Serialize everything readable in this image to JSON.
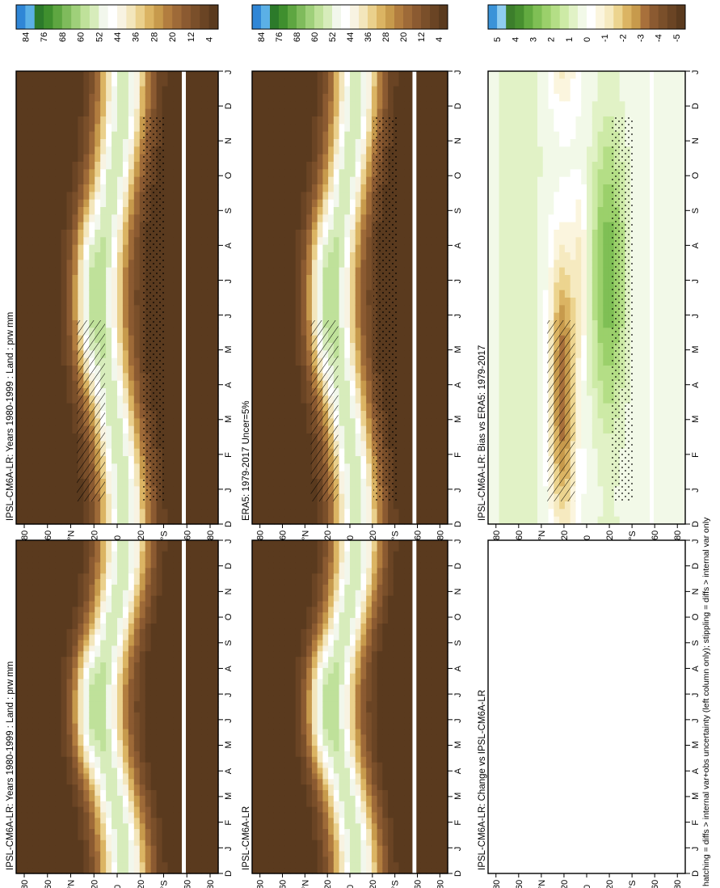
{
  "footer": "hatching = diffs > internal var+obs uncertainty (left column only); stippling = diffs > internal var only",
  "lat_labels": [
    "80",
    "60",
    "°N",
    "20",
    "0",
    "20",
    "°S",
    "60",
    "80"
  ],
  "month_labels": [
    "J",
    "F",
    "M",
    "A",
    "M",
    "J",
    "J",
    "A",
    "S",
    "O",
    "N",
    "D",
    "J"
  ],
  "month_labels_start": "D",
  "abs_scale": {
    "labels": [
      "84",
      "76",
      "68",
      "60",
      "52",
      "44",
      "36",
      "28",
      "20",
      "12",
      "4"
    ],
    "colors": [
      "#5a3a1e",
      "#6a4424",
      "#7a4f2a",
      "#8b5a31",
      "#9e6a38",
      "#b27d3f",
      "#c79a4c",
      "#dbb463",
      "#ead08c",
      "#f3e6bc",
      "#f8f3e2",
      "#ffffff",
      "#f2f7ec",
      "#d7ecbb",
      "#bfe19a",
      "#9fd07a",
      "#7fbb5c",
      "#5ea641",
      "#3f8f2e",
      "#2c7a2a",
      "#5bb0e6",
      "#2f86d6"
    ]
  },
  "diff_scale": {
    "labels": [
      "5",
      "4",
      "3",
      "2",
      "1",
      "0",
      "-1",
      "-2",
      "-3",
      "-4",
      "-5"
    ],
    "colors": [
      "#5a3a1e",
      "#6a4424",
      "#7a4f2a",
      "#8b5a31",
      "#a8703b",
      "#c79a4c",
      "#dbb463",
      "#ecd48f",
      "#f6eac0",
      "#fbf5de",
      "#ffffff",
      "#f2f9e8",
      "#e1f2c6",
      "#cdeaa6",
      "#b4de86",
      "#9bd06b",
      "#7fbf55",
      "#62aa40",
      "#478f2f",
      "#3c7e2b",
      "#8fcdf0",
      "#3a93d8"
    ]
  },
  "chart_data": [
    {
      "type": "heatmap",
      "title": "IPSL-CM6A-LR: Years 1980-1999 : Land : prw mm",
      "x": [
        "D",
        "J",
        "F",
        "M",
        "A",
        "M",
        "J",
        "J",
        "A",
        "S",
        "O",
        "N",
        "D",
        "J"
      ],
      "y": [
        "80",
        "60",
        "°N",
        "20",
        "0",
        "20",
        "°S",
        "60",
        "80"
      ],
      "units": "mm",
      "colorbar": [
        4,
        84
      ]
    },
    {
      "type": "heatmap",
      "title": "IPSL-CM6A-LR: Years 1980-1999 : Land : prw mm",
      "x": [
        "D",
        "J",
        "F",
        "M",
        "A",
        "M",
        "J",
        "J",
        "A",
        "S",
        "O",
        "N",
        "D",
        "J"
      ],
      "y": [
        "80",
        "60",
        "°N",
        "20",
        "0",
        "20",
        "°S",
        "60",
        "80"
      ],
      "units": "mm",
      "colorbar": [
        4,
        84
      ]
    },
    {
      "type": "heatmap",
      "title": "ERA5: 1979-2017 Uncer=5%",
      "x": [
        "D",
        "J",
        "F",
        "M",
        "A",
        "M",
        "J",
        "J",
        "A",
        "S",
        "O",
        "N",
        "D",
        "J"
      ],
      "y": [
        "80",
        "60",
        "°N",
        "20",
        "0",
        "20",
        "°S",
        "60",
        "80"
      ],
      "units": "mm",
      "colorbar": [
        4,
        84
      ]
    },
    {
      "type": "heatmap",
      "title": "IPSL-CM6A-LR",
      "x": [
        "D",
        "J",
        "F",
        "M",
        "A",
        "M",
        "J",
        "J",
        "A",
        "S",
        "O",
        "N",
        "D",
        "J"
      ],
      "y": [
        "80",
        "60",
        "°N",
        "20",
        "0",
        "20",
        "°S",
        "60",
        "80"
      ],
      "units": "mm",
      "colorbar": [
        4,
        84
      ]
    },
    {
      "type": "heatmap",
      "title": "IPSL-CM6A-LR: Bias vs ERA5: 1979-2017",
      "x": [
        "D",
        "J",
        "F",
        "M",
        "A",
        "M",
        "J",
        "J",
        "A",
        "S",
        "O",
        "N",
        "D",
        "J"
      ],
      "y": [
        "80",
        "60",
        "°N",
        "20",
        "0",
        "20",
        "°S",
        "60",
        "80"
      ],
      "units": "mm",
      "colorbar": [
        -5,
        5
      ]
    },
    {
      "type": "heatmap",
      "title": "IPSL-CM6A-LR: Change vs IPSL-CM6A-LR",
      "x": [
        "D",
        "J",
        "F",
        "M",
        "A",
        "M",
        "J",
        "J",
        "A",
        "S",
        "O",
        "N",
        "D",
        "J"
      ],
      "y": [
        "80",
        "60",
        "°N",
        "20",
        "0",
        "20",
        "°S",
        "60",
        "80"
      ],
      "units": "mm",
      "colorbar": [
        -5,
        5
      ],
      "empty": true
    }
  ]
}
